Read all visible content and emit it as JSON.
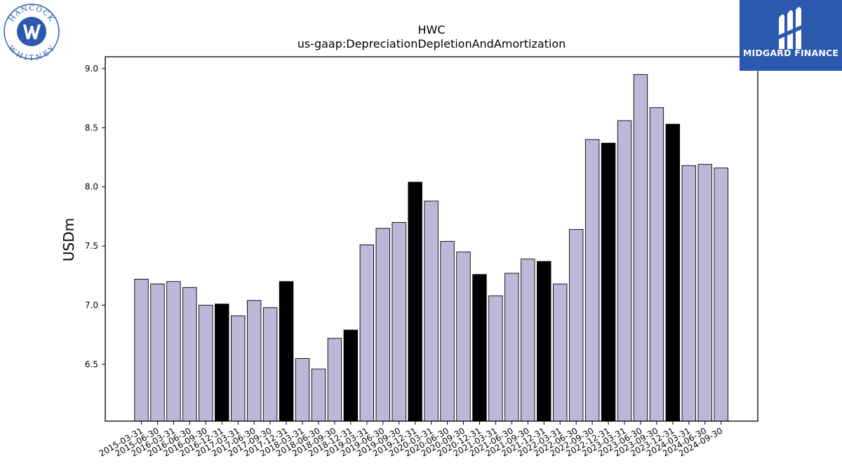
{
  "logos": {
    "left": {
      "icon": "hancock-whitney-seal",
      "text_top": "HANCOCK",
      "text_bottom": "WHITNEY"
    },
    "right": {
      "icon": "midgard-finance-logo",
      "text": "MIDGARD FINANCE",
      "bg_color": "#2b59ad"
    }
  },
  "chart_data": {
    "type": "bar",
    "title": "HWC",
    "subtitle": "us-gaap:DepreciationDepletionAndAmortization",
    "xlabel": "",
    "ylabel": "USDm",
    "ylim": [
      6.02,
      9.1
    ],
    "yticks": [
      "6.5",
      "7.0",
      "7.5",
      "8.0",
      "8.5",
      "9.0"
    ],
    "grid": false,
    "colors": {
      "regular": "#bdb8d9",
      "highlight": "#000000",
      "edge": "#000000"
    },
    "categories": [
      "2015-03-31",
      "2015-06-30",
      "2016-03-31",
      "2016-06-30",
      "2016-09-30",
      "2016-12-31",
      "2017-03-31",
      "2017-06-30",
      "2017-09-30",
      "2017-12-31",
      "2018-03-31",
      "2018-06-30",
      "2018-09-30",
      "2018-12-31",
      "2019-03-31",
      "2019-06-30",
      "2019-09-30",
      "2019-12-31",
      "2020-03-31",
      "2020-06-30",
      "2020-09-30",
      "2020-12-31",
      "2021-03-31",
      "2021-06-30",
      "2021-09-30",
      "2021-12-31",
      "2022-03-31",
      "2022-06-30",
      "2022-09-30",
      "2022-12-31",
      "2023-03-31",
      "2023-06-30",
      "2023-09-30",
      "2023-12-31",
      "2024-03-31",
      "2024-06-30",
      "2024-09-30"
    ],
    "values": [
      7.22,
      7.18,
      7.2,
      7.15,
      7.0,
      7.01,
      6.91,
      7.04,
      6.98,
      7.2,
      6.55,
      6.46,
      6.72,
      6.79,
      7.51,
      7.65,
      7.7,
      8.04,
      7.88,
      7.54,
      7.45,
      7.26,
      7.08,
      7.27,
      7.39,
      7.37,
      7.18,
      7.64,
      8.4,
      8.37,
      8.56,
      8.95,
      8.67,
      8.53,
      8.18,
      8.19,
      8.16
    ],
    "highlight": [
      false,
      false,
      false,
      false,
      false,
      true,
      false,
      false,
      false,
      true,
      false,
      false,
      false,
      true,
      false,
      false,
      false,
      true,
      false,
      false,
      false,
      true,
      false,
      false,
      false,
      true,
      false,
      false,
      false,
      true,
      false,
      false,
      false,
      true,
      false,
      false,
      false
    ]
  }
}
